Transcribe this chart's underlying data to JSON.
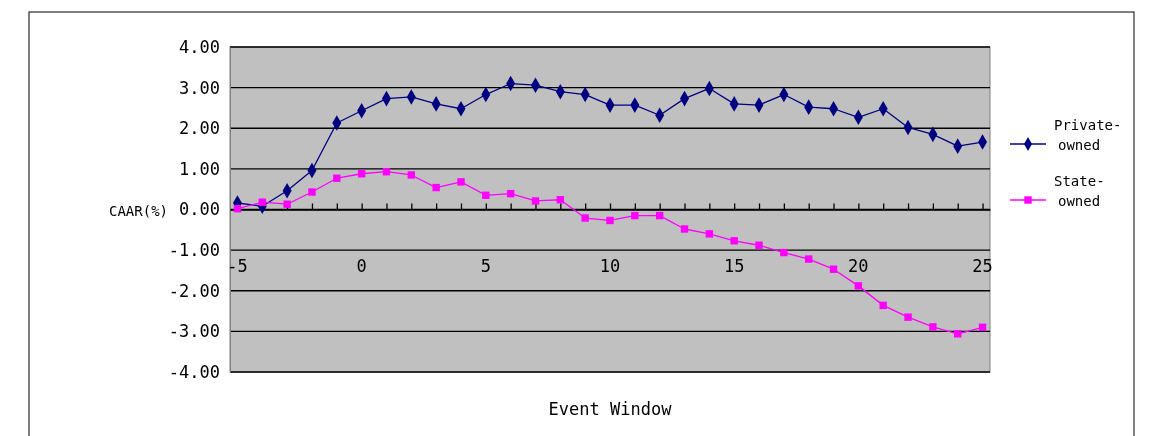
{
  "chart_data": {
    "type": "line",
    "xlabel": "Event Window",
    "ylabel": "CAAR(%)",
    "x": [
      -5,
      -4,
      -3,
      -2,
      -1,
      0,
      1,
      2,
      3,
      4,
      5,
      6,
      7,
      8,
      9,
      10,
      11,
      12,
      13,
      14,
      15,
      16,
      17,
      18,
      19,
      20,
      21,
      22,
      23,
      24,
      25
    ],
    "series": [
      {
        "name": "Private-owned",
        "color": "#000080",
        "marker": "diamond",
        "values": [
          0.16,
          0.08,
          0.46,
          0.96,
          2.13,
          2.43,
          2.73,
          2.77,
          2.6,
          2.48,
          2.83,
          3.1,
          3.06,
          2.9,
          2.83,
          2.57,
          2.57,
          2.32,
          2.73,
          2.98,
          2.6,
          2.57,
          2.83,
          2.52,
          2.48,
          2.27,
          2.48,
          2.02,
          1.85,
          1.56,
          1.66
        ]
      },
      {
        "name": "State-owned",
        "color": "#ff00ff",
        "marker": "square",
        "values": [
          0.02,
          0.18,
          0.13,
          0.43,
          0.77,
          0.88,
          0.93,
          0.85,
          0.54,
          0.68,
          0.35,
          0.39,
          0.21,
          0.24,
          -0.21,
          -0.27,
          -0.15,
          -0.15,
          -0.48,
          -0.6,
          -0.77,
          -0.88,
          -1.06,
          -1.22,
          -1.47,
          -1.88,
          -2.36,
          -2.65,
          -2.89,
          -3.06,
          -2.9
        ]
      }
    ],
    "xlim": [
      -5.3,
      25.3
    ],
    "xticks": [
      -5,
      {
        "value": -4,
        "label": null
      },
      {
        "value": -3,
        "label": null
      },
      {
        "value": -2,
        "label": null
      },
      {
        "value": -1,
        "label": null
      },
      0,
      {
        "value": 1,
        "label": null
      },
      {
        "value": 2,
        "label": null
      },
      {
        "value": 3,
        "label": null
      },
      {
        "value": 4,
        "label": null
      },
      5,
      {
        "value": 6,
        "label": null
      },
      {
        "value": 7,
        "label": null
      },
      {
        "value": 8,
        "label": null
      },
      {
        "value": 9,
        "label": null
      },
      10,
      {
        "value": 11,
        "label": null
      },
      {
        "value": 12,
        "label": null
      },
      {
        "value": 13,
        "label": null
      },
      {
        "value": 14,
        "label": null
      },
      15,
      {
        "value": 16,
        "label": null
      },
      {
        "value": 17,
        "label": null
      },
      {
        "value": 18,
        "label": null
      },
      {
        "value": 19,
        "label": null
      },
      20,
      {
        "value": 21,
        "label": null
      },
      {
        "value": 22,
        "label": null
      },
      {
        "value": 23,
        "label": null
      },
      {
        "value": 24,
        "label": null
      },
      25
    ],
    "ylim": [
      -4,
      4
    ],
    "yticks": [
      {
        "value": 4,
        "label": "4.00"
      },
      {
        "value": 3,
        "label": "3.00"
      },
      {
        "value": 2,
        "label": "2.00"
      },
      {
        "value": 1,
        "label": "1.00"
      },
      {
        "value": 0,
        "label": "0.00"
      },
      {
        "value": -1,
        "label": "-1.00"
      },
      {
        "value": -2,
        "label": "-2.00"
      },
      {
        "value": -3,
        "label": "-3.00"
      },
      {
        "value": -4,
        "label": "-4.00"
      }
    ],
    "grid": "y",
    "legend": "right"
  }
}
